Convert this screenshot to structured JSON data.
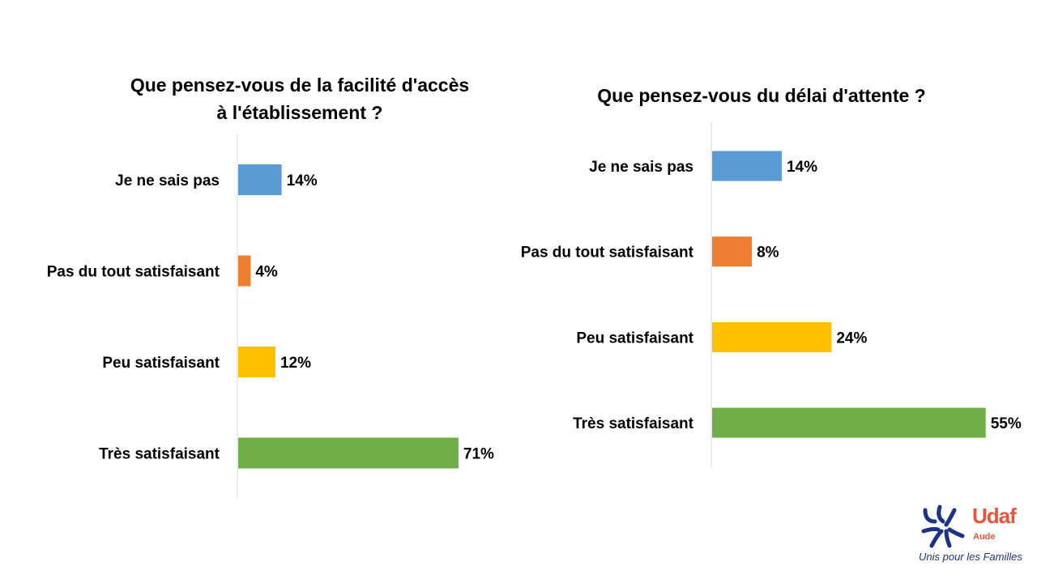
{
  "chart_data": [
    {
      "type": "bar",
      "orientation": "horizontal",
      "title": "Que pensez-vous de la facilité d'accès à l'établissement ?",
      "title_lines": [
        "Que pensez-vous de la facilité d'accès",
        "à l'établissement ?"
      ],
      "categories": [
        "Je ne sais pas",
        "Pas du tout satisfaisant",
        "Peu satisfaisant",
        "Très satisfaisant"
      ],
      "values": [
        14,
        4,
        12,
        71
      ],
      "value_labels": [
        "14%",
        "4%",
        "12%",
        "71%"
      ],
      "colors": [
        "#5b9bd5",
        "#ed7d31",
        "#ffc000",
        "#70ad47"
      ],
      "xlim": [
        0,
        100
      ],
      "grid": false,
      "legend": "none"
    },
    {
      "type": "bar",
      "orientation": "horizontal",
      "title": "Que pensez-vous du délai d'attente ?",
      "title_lines": [
        "Que pensez-vous du délai d'attente ?"
      ],
      "categories": [
        "Je ne sais pas",
        "Pas du tout satisfaisant",
        "Peu satisfaisant",
        "Très satisfaisant"
      ],
      "values": [
        14,
        8,
        24,
        55
      ],
      "value_labels": [
        "14%",
        "8%",
        "24%",
        "55%"
      ],
      "colors": [
        "#5b9bd5",
        "#ed7d31",
        "#ffc000",
        "#70ad47"
      ],
      "xlim": [
        0,
        100
      ],
      "grid": false,
      "legend": "none"
    }
  ],
  "logo": {
    "name": "Udaf",
    "subtitle": "Aude",
    "tagline": "Unis pour les Familles",
    "colors": {
      "primary": "#e8553e",
      "secondary": "#1c3384"
    }
  }
}
